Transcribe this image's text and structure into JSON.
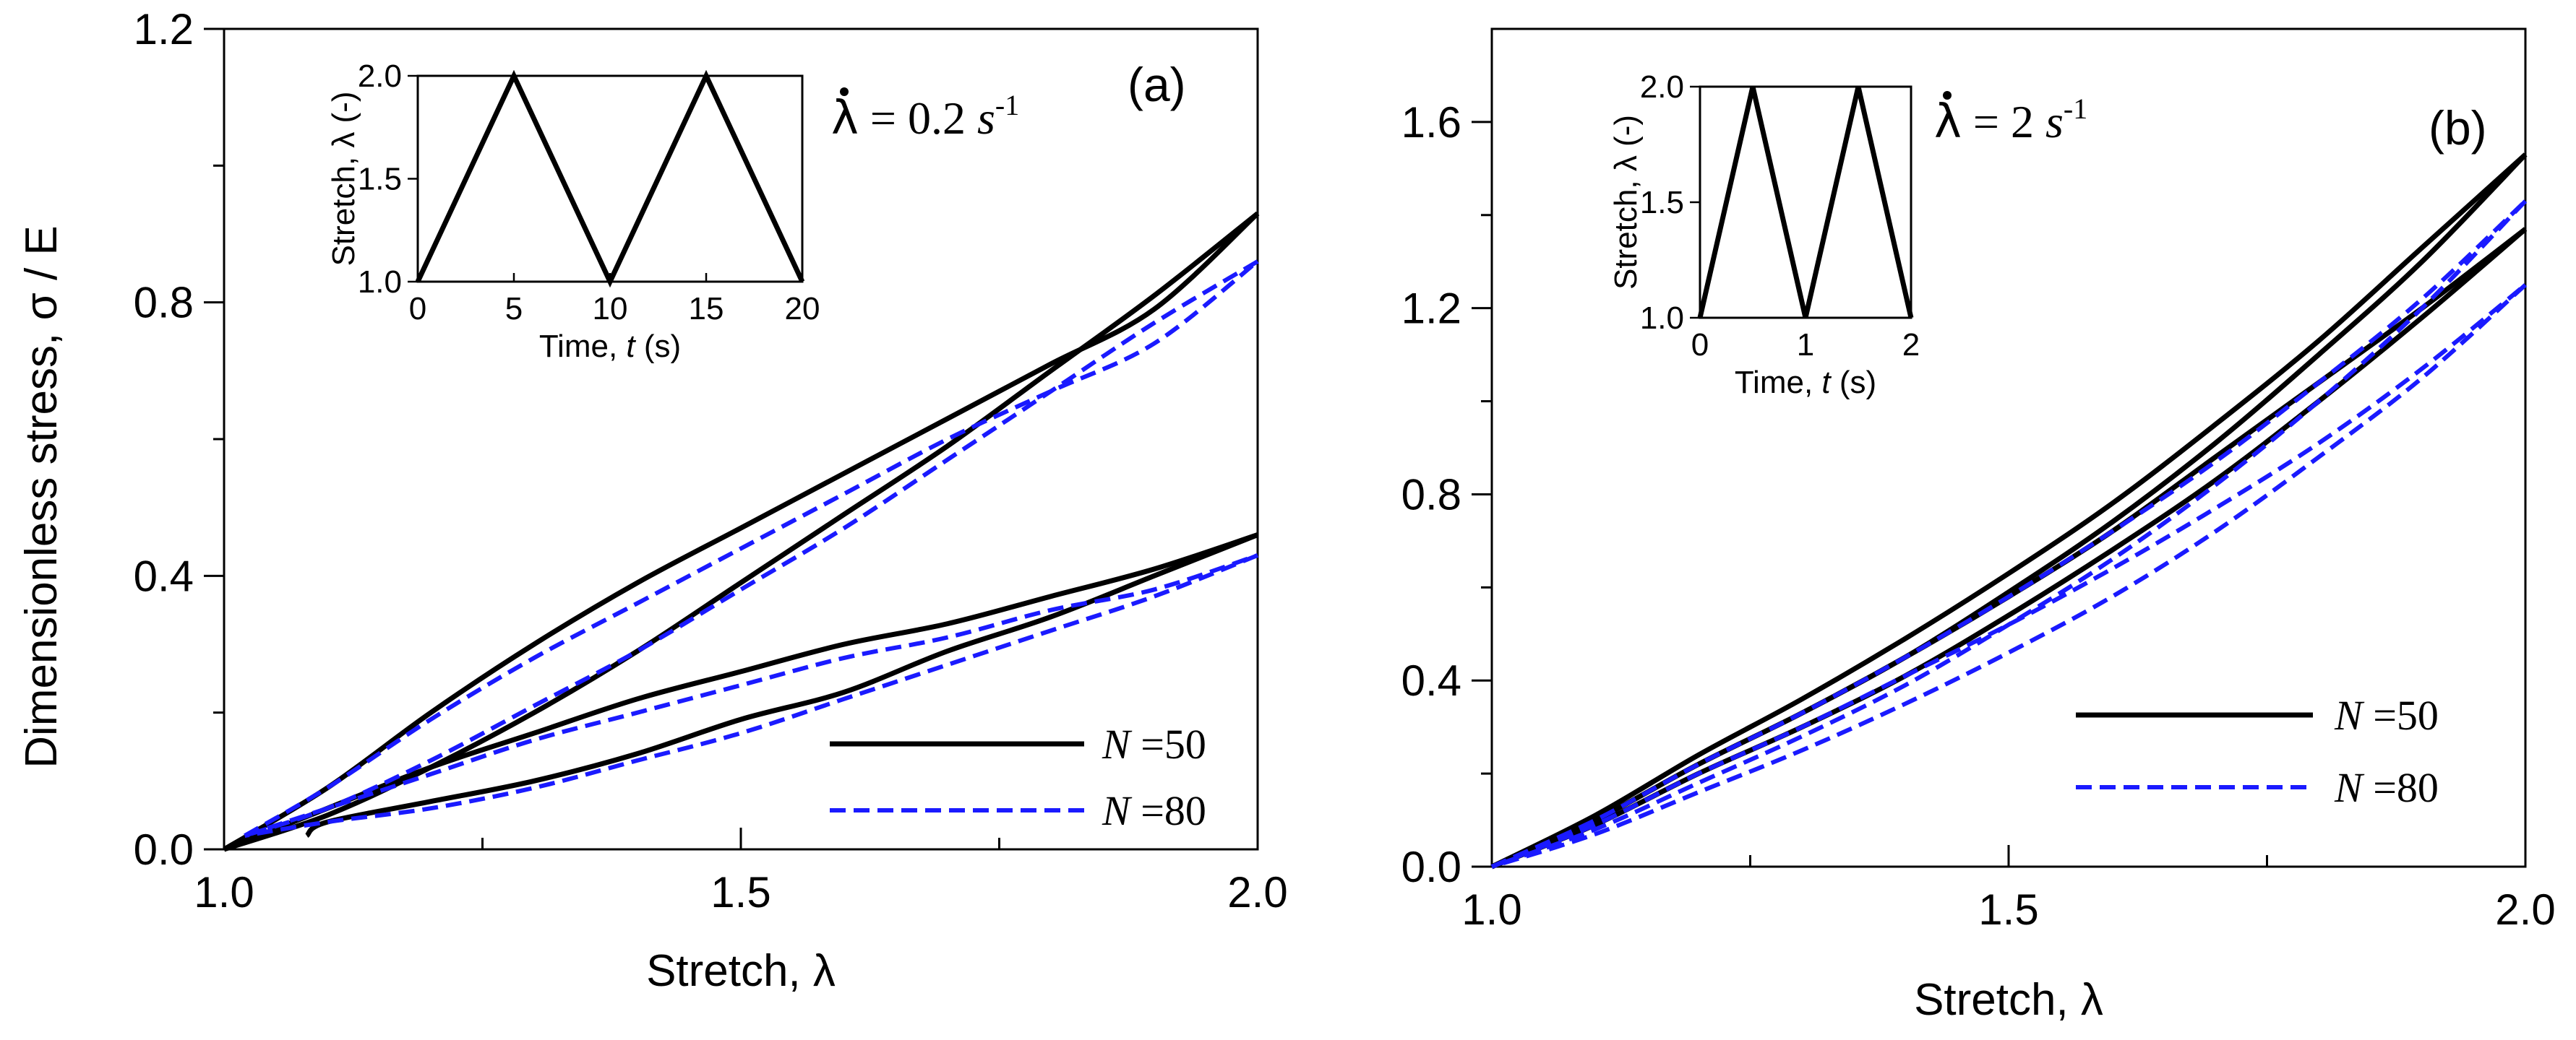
{
  "chart_data": [
    {
      "panel": "(a)",
      "type": "line",
      "xlabel": "Stretch, λ",
      "ylabel": "Dimensionless stress, σ / E",
      "xlim": [
        1.0,
        2.0
      ],
      "ylim": [
        0.0,
        1.2
      ],
      "xticks": [
        "1.0",
        "1.5",
        "2.0"
      ],
      "yticks": [
        "0.0",
        "0.4",
        "0.8",
        "1.2"
      ],
      "rate_label": {
        "symbol": "λ",
        "value": "= 0.2",
        "unit": "s",
        "exp": "-1"
      },
      "legend": [
        {
          "var": "N",
          "value": "=50",
          "color": "#000000",
          "style": "solid"
        },
        {
          "var": "N",
          "value": "=80",
          "color": "#1a1aff",
          "style": "dashed"
        }
      ],
      "series": [
        {
          "name": "N=50",
          "color": "#000000",
          "style": "solid",
          "x": [
            1.0,
            1.1,
            1.2,
            1.3,
            1.4,
            1.5,
            1.6,
            1.7,
            1.8,
            1.9,
            2.0
          ],
          "y": [
            0.0,
            0.09,
            0.2,
            0.3,
            0.39,
            0.47,
            0.55,
            0.63,
            0.71,
            0.79,
            0.93
          ]
        },
        {
          "name": "N=50",
          "color": "#000000",
          "style": "solid",
          "x": [
            2.0,
            1.9,
            1.8,
            1.7,
            1.6,
            1.5,
            1.4,
            1.3,
            1.2,
            1.1,
            1.0
          ],
          "y": [
            0.93,
            0.81,
            0.7,
            0.59,
            0.49,
            0.39,
            0.29,
            0.2,
            0.12,
            0.05,
            0.0
          ]
        },
        {
          "name": "N=50",
          "color": "#000000",
          "style": "solid",
          "x": [
            1.0,
            1.1,
            1.2,
            1.3,
            1.4,
            1.5,
            1.6,
            1.7,
            1.8,
            1.9,
            2.0
          ],
          "y": [
            0.0,
            0.06,
            0.12,
            0.17,
            0.22,
            0.26,
            0.3,
            0.33,
            0.37,
            0.41,
            0.46
          ]
        },
        {
          "name": "N=50",
          "color": "#000000",
          "style": "solid",
          "x": [
            2.0,
            1.9,
            1.8,
            1.7,
            1.6,
            1.5,
            1.4,
            1.3,
            1.2,
            1.1,
            1.08
          ],
          "y": [
            0.46,
            0.4,
            0.34,
            0.29,
            0.23,
            0.19,
            0.14,
            0.1,
            0.07,
            0.04,
            0.02
          ]
        },
        {
          "name": "N=80",
          "color": "#1a1aff",
          "style": "dashed",
          "x": [
            1.02,
            1.1,
            1.2,
            1.3,
            1.4,
            1.5,
            1.6,
            1.7,
            1.8,
            1.9,
            2.0
          ],
          "y": [
            0.02,
            0.09,
            0.19,
            0.28,
            0.36,
            0.44,
            0.52,
            0.6,
            0.67,
            0.74,
            0.86
          ]
        },
        {
          "name": "N=80",
          "color": "#1a1aff",
          "style": "dashed",
          "x": [
            2.0,
            1.9,
            1.8,
            1.7,
            1.6,
            1.5,
            1.4,
            1.3,
            1.2,
            1.1,
            1.02
          ],
          "y": [
            0.86,
            0.77,
            0.67,
            0.57,
            0.47,
            0.38,
            0.29,
            0.21,
            0.13,
            0.06,
            0.02
          ]
        },
        {
          "name": "N=80",
          "color": "#1a1aff",
          "style": "dashed",
          "x": [
            1.02,
            1.1,
            1.2,
            1.3,
            1.4,
            1.5,
            1.6,
            1.7,
            1.8,
            1.9,
            2.0
          ],
          "y": [
            0.02,
            0.06,
            0.11,
            0.16,
            0.2,
            0.24,
            0.28,
            0.31,
            0.35,
            0.38,
            0.43
          ]
        },
        {
          "name": "N=80",
          "color": "#1a1aff",
          "style": "dashed",
          "x": [
            2.0,
            1.9,
            1.8,
            1.7,
            1.6,
            1.5,
            1.4,
            1.3,
            1.2,
            1.1,
            1.02
          ],
          "y": [
            0.43,
            0.37,
            0.32,
            0.27,
            0.22,
            0.17,
            0.13,
            0.09,
            0.06,
            0.04,
            0.02
          ]
        }
      ],
      "inset": {
        "type": "line",
        "xlabel": "Time, t (s)",
        "ylabel": "Stretch, λ (-)",
        "xlim": [
          0,
          20
        ],
        "ylim": [
          1.0,
          2.0
        ],
        "xticks": [
          "0",
          "5",
          "10",
          "15",
          "20"
        ],
        "yticks": [
          "1.0",
          "1.5",
          "2.0"
        ],
        "x": [
          0,
          5,
          10,
          15,
          20
        ],
        "y": [
          1.0,
          2.0,
          1.0,
          2.0,
          1.0
        ]
      }
    },
    {
      "panel": "(b)",
      "type": "line",
      "xlabel": "Stretch, λ",
      "ylabel": "",
      "xlim": [
        1.0,
        2.0
      ],
      "ylim": [
        0.0,
        1.8
      ],
      "xticks": [
        "1.0",
        "1.5",
        "2.0"
      ],
      "yticks": [
        "0.0",
        "0.4",
        "0.8",
        "1.2",
        "1.6"
      ],
      "rate_label": {
        "symbol": "λ",
        "value": "= 2",
        "unit": "s",
        "exp": "-1"
      },
      "legend": [
        {
          "var": "N",
          "value": "=50",
          "color": "#000000",
          "style": "solid"
        },
        {
          "var": "N",
          "value": "=80",
          "color": "#1a1aff",
          "style": "dashed"
        }
      ],
      "series": [
        {
          "name": "N=50",
          "color": "#000000",
          "style": "solid",
          "x": [
            1.0,
            1.1,
            1.2,
            1.3,
            1.4,
            1.5,
            1.6,
            1.7,
            1.8,
            1.9,
            2.0
          ],
          "y": [
            0.0,
            0.11,
            0.24,
            0.36,
            0.49,
            0.63,
            0.78,
            0.95,
            1.13,
            1.33,
            1.53
          ]
        },
        {
          "name": "N=50",
          "color": "#000000",
          "style": "solid",
          "x": [
            2.0,
            1.9,
            1.8,
            1.7,
            1.6,
            1.5,
            1.4,
            1.3,
            1.2,
            1.1,
            1.0
          ],
          "y": [
            1.53,
            1.3,
            1.1,
            0.91,
            0.74,
            0.59,
            0.45,
            0.33,
            0.22,
            0.1,
            0.0
          ]
        },
        {
          "name": "N=50",
          "color": "#000000",
          "style": "solid",
          "x": [
            1.0,
            1.1,
            1.2,
            1.3,
            1.4,
            1.5,
            1.6,
            1.7,
            1.8,
            1.9,
            2.0
          ],
          "y": [
            0.0,
            0.1,
            0.22,
            0.33,
            0.45,
            0.58,
            0.72,
            0.88,
            1.04,
            1.2,
            1.37
          ]
        },
        {
          "name": "N=50",
          "color": "#000000",
          "style": "solid",
          "x": [
            2.0,
            1.9,
            1.8,
            1.7,
            1.6,
            1.5,
            1.4,
            1.3,
            1.2,
            1.1,
            1.0
          ],
          "y": [
            1.37,
            1.18,
            1.0,
            0.83,
            0.68,
            0.54,
            0.41,
            0.3,
            0.2,
            0.09,
            0.0
          ]
        },
        {
          "name": "N=80",
          "color": "#1a1aff",
          "style": "dashed",
          "x": [
            1.0,
            1.1,
            1.2,
            1.3,
            1.4,
            1.5,
            1.6,
            1.7,
            1.8,
            1.9,
            2.0
          ],
          "y": [
            0.0,
            0.1,
            0.22,
            0.33,
            0.45,
            0.58,
            0.72,
            0.87,
            1.04,
            1.22,
            1.43
          ]
        },
        {
          "name": "N=80",
          "color": "#1a1aff",
          "style": "dashed",
          "x": [
            2.0,
            1.9,
            1.8,
            1.7,
            1.6,
            1.5,
            1.4,
            1.3,
            1.2,
            1.1,
            1.0
          ],
          "y": [
            1.43,
            1.2,
            1.0,
            0.82,
            0.66,
            0.52,
            0.39,
            0.28,
            0.18,
            0.08,
            0.0
          ]
        },
        {
          "name": "N=80",
          "color": "#1a1aff",
          "style": "dashed",
          "x": [
            1.0,
            1.1,
            1.2,
            1.3,
            1.4,
            1.5,
            1.6,
            1.7,
            1.8,
            1.9,
            2.0
          ],
          "y": [
            0.0,
            0.09,
            0.2,
            0.3,
            0.41,
            0.52,
            0.64,
            0.77,
            0.91,
            1.07,
            1.25
          ]
        },
        {
          "name": "N=80",
          "color": "#1a1aff",
          "style": "dashed",
          "x": [
            2.0,
            1.9,
            1.8,
            1.7,
            1.6,
            1.5,
            1.4,
            1.3,
            1.2,
            1.1,
            1.0
          ],
          "y": [
            1.25,
            1.05,
            0.88,
            0.72,
            0.58,
            0.46,
            0.35,
            0.25,
            0.16,
            0.07,
            0.0
          ]
        }
      ],
      "inset": {
        "type": "line",
        "xlabel": "Time, t (s)",
        "ylabel": "Stretch, λ (-)",
        "xlim": [
          0,
          2
        ],
        "ylim": [
          1.0,
          2.0
        ],
        "xticks": [
          "0",
          "1",
          "2"
        ],
        "yticks": [
          "1.0",
          "1.5",
          "2.0"
        ],
        "x": [
          0,
          0.5,
          1.0,
          1.5,
          2.0
        ],
        "y": [
          1.0,
          2.0,
          1.0,
          2.0,
          1.0
        ]
      }
    }
  ]
}
